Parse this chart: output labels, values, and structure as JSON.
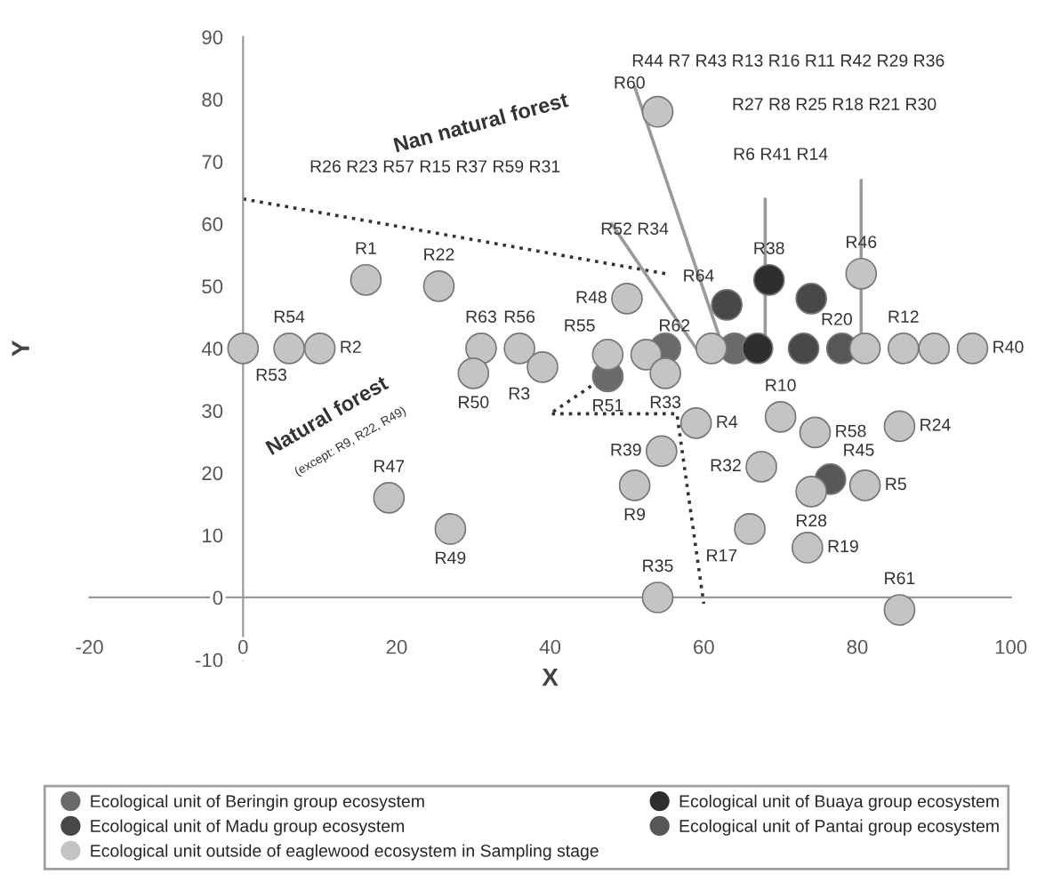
{
  "chart_data": {
    "type": "scatter",
    "xlabel": "X",
    "ylabel": "Y",
    "xlim": [
      -20,
      100
    ],
    "ylim": [
      -10,
      90
    ],
    "xticks": [
      -20,
      0,
      20,
      40,
      60,
      80,
      100
    ],
    "yticks": [
      -10,
      0,
      10,
      20,
      30,
      40,
      50,
      60,
      70,
      80,
      90
    ],
    "grid": false,
    "legend": "bottom",
    "series": [
      {
        "name": "Ecological unit of Beringin group ecosystem",
        "color": "#6a6a6a",
        "marker": "circle",
        "x": [
          47.5,
          55,
          64
        ],
        "values": [
          35.5,
          40,
          40
        ]
      },
      {
        "name": "Ecological unit of Buaya group ecosystem",
        "color": "#2e2e2e",
        "marker": "circle",
        "x": [
          68.5,
          67
        ],
        "values": [
          51,
          40
        ]
      },
      {
        "name": "Ecological unit of Madu group ecosystem",
        "color": "#484848",
        "marker": "circle",
        "x": [
          63,
          73,
          74
        ],
        "values": [
          47,
          40,
          48
        ]
      },
      {
        "name": "Ecological unit of Pantai group ecosystem",
        "color": "#575757",
        "marker": "circle",
        "x": [
          78,
          76.5
        ],
        "values": [
          40,
          19
        ]
      },
      {
        "name": "Ecological unit outside of eaglewood ecosystem in Sampling stage",
        "color": "#c4c4c4",
        "marker": "circle",
        "x": [
          0,
          6,
          10,
          16,
          25.5,
          31,
          30,
          36,
          39,
          47.5,
          50,
          52.5,
          55,
          61,
          59,
          54.5,
          51,
          54,
          70,
          74.5,
          85.5,
          67.5,
          74,
          81,
          66,
          73.5,
          85.5,
          19,
          27,
          54,
          80.5,
          81,
          86,
          90,
          95
        ],
        "values": [
          40,
          40,
          40,
          51,
          50,
          40,
          36,
          40,
          37,
          39,
          48,
          39,
          36,
          40,
          28,
          23.5,
          18,
          0,
          29,
          26.5,
          27.5,
          21,
          17,
          18,
          11,
          8,
          -2,
          16,
          11,
          78,
          52,
          40,
          40,
          40,
          40
        ]
      },
      {
        "type": "line",
        "color": "#333333",
        "line_style": "dotted",
        "x": [
          0,
          55
        ],
        "values": [
          64,
          52
        ]
      },
      {
        "type": "line",
        "color": "#333333",
        "line_style": "dotted",
        "x": [
          49,
          40,
          56.5,
          60
        ],
        "values": [
          37,
          29.5,
          29.5,
          -1
        ]
      },
      {
        "type": "line",
        "color": "#9a9a9a",
        "line_style": "solid",
        "x": [
          51,
          62
        ],
        "values": [
          82,
          42
        ]
      },
      {
        "type": "line",
        "color": "#9a9a9a",
        "line_style": "solid",
        "x": [
          48,
          59
        ],
        "values": [
          60,
          40
        ]
      },
      {
        "type": "line",
        "color": "#9a9a9a",
        "line_style": "solid",
        "x": [
          68,
          68
        ],
        "values": [
          64,
          40
        ]
      },
      {
        "type": "line",
        "color": "#9a9a9a",
        "line_style": "solid",
        "x": [
          80.5,
          80.5
        ],
        "values": [
          67,
          40
        ]
      }
    ],
    "annotations": [
      "Nan natural forest",
      "Natural forest",
      "(except: R9, R22, R49)",
      "R44 R7 R43 R13 R16 R11 R42 R29 R36",
      "R27 R8 R25 R18 R21 R30",
      "R6 R41 R14",
      "R26 R23 R57 R15 R37 R59 R31",
      "R52 R34",
      {
        "text": "R1",
        "x": 16,
        "y": 51
      },
      {
        "text": "R22",
        "x": 25.5,
        "y": 50
      },
      {
        "text": "R54",
        "x": 6,
        "y": 40
      },
      {
        "text": "R2",
        "x": 10,
        "y": 40
      },
      {
        "text": "R53",
        "x": 0,
        "y": 40
      },
      {
        "text": "R63",
        "x": 31,
        "y": 40
      },
      {
        "text": "R56",
        "x": 36,
        "y": 40
      },
      {
        "text": "R50",
        "x": 30,
        "y": 36
      },
      {
        "text": "R3",
        "x": 39,
        "y": 37
      },
      {
        "text": "R48",
        "x": 50,
        "y": 48
      },
      {
        "text": "R55",
        "x": 47.5,
        "y": 39
      },
      {
        "text": "R62",
        "x": 52.5,
        "y": 39
      },
      {
        "text": "R51",
        "x": 47.5,
        "y": 35.5
      },
      {
        "text": "R33",
        "x": 55,
        "y": 36
      },
      {
        "text": "R64",
        "x": 63,
        "y": 47
      },
      {
        "text": "R38",
        "x": 68.5,
        "y": 51
      },
      {
        "text": "R20",
        "x": 81,
        "y": 40
      },
      {
        "text": "R46",
        "x": 80.5,
        "y": 52
      },
      {
        "text": "R12",
        "x": 86,
        "y": 40
      },
      {
        "text": "R40",
        "x": 95,
        "y": 40
      },
      {
        "text": "R10",
        "x": 70,
        "y": 29
      },
      {
        "text": "R58",
        "x": 74.5,
        "y": 26.5
      },
      {
        "text": "R24",
        "x": 85.5,
        "y": 27.5
      },
      {
        "text": "R4",
        "x": 59,
        "y": 28
      },
      {
        "text": "R39",
        "x": 54.5,
        "y": 23.5
      },
      {
        "text": "R9",
        "x": 51,
        "y": 18
      },
      {
        "text": "R45",
        "x": 76.5,
        "y": 19
      },
      {
        "text": "R32",
        "x": 67.5,
        "y": 21
      },
      {
        "text": "R5",
        "x": 81,
        "y": 18
      },
      {
        "text": "R28",
        "x": 74,
        "y": 17
      },
      {
        "text": "R17",
        "x": 66,
        "y": 11
      },
      {
        "text": "R19",
        "x": 73.5,
        "y": 8
      },
      {
        "text": "R35",
        "x": 54,
        "y": 0
      },
      {
        "text": "R61",
        "x": 85.5,
        "y": -2
      },
      {
        "text": "R47",
        "x": 19,
        "y": 16
      },
      {
        "text": "R49",
        "x": 27,
        "y": 11
      },
      {
        "text": "R60",
        "x": 54,
        "y": 78
      }
    ]
  }
}
